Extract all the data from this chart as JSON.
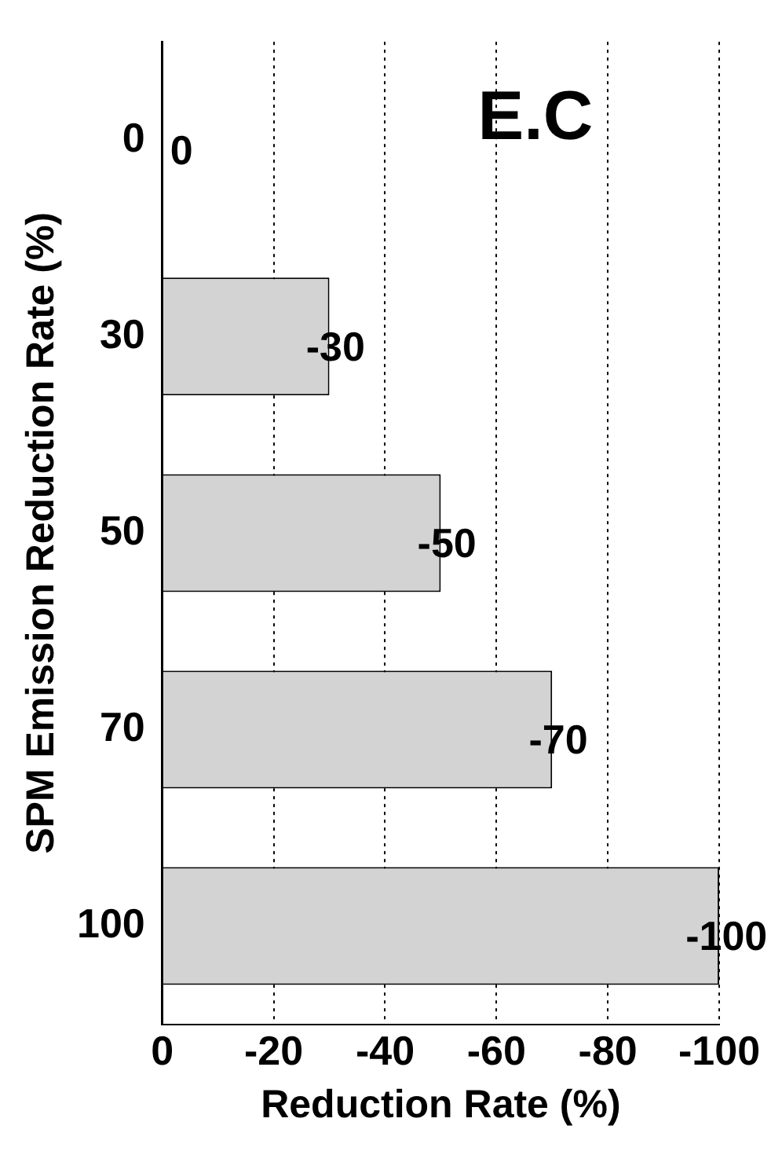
{
  "chart_data": {
    "type": "bar",
    "orientation": "horizontal",
    "xlabel": "Reduction Rate (%)",
    "ylabel": "SPM Emission Reduction Rate (%)",
    "categories": [
      "0",
      "30",
      "50",
      "70",
      "100"
    ],
    "values": [
      0,
      -30,
      -50,
      -70,
      -100
    ],
    "color": "#d3d3d3",
    "xlim": [
      0,
      -100
    ],
    "xticks": [
      0,
      -20,
      -40,
      -60,
      -80,
      -100
    ],
    "grid": "x",
    "data_labels": true,
    "annotations": [
      "E.C"
    ]
  }
}
